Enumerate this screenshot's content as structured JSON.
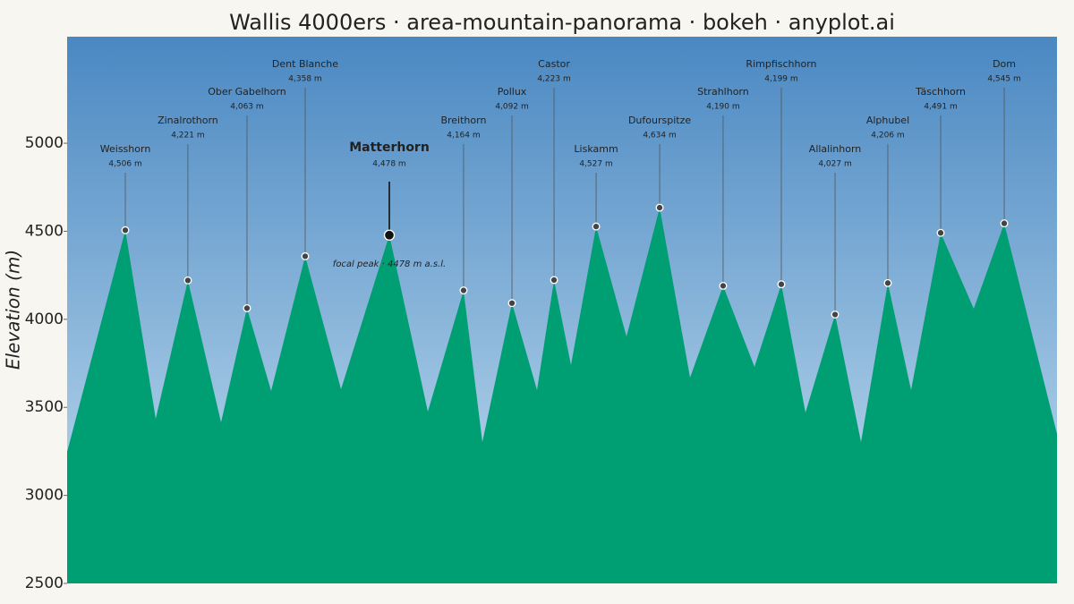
{
  "chart_data": {
    "type": "area",
    "title": "Wallis 4000ers · area-mountain-panorama · bokeh · anyplot.ai",
    "ylabel": "Elevation (m)",
    "xlim": [
      0,
      1000
    ],
    "ylim": [
      2500,
      5605
    ],
    "yticks": [
      2500,
      3000,
      3500,
      4000,
      4500,
      5000
    ],
    "sky_colors": [
      "#4a88c2",
      "#c6e0f1"
    ],
    "color": "#009e73",
    "profile": {
      "x": [
        0,
        58.8,
        89.5,
        122,
        155.5,
        181.7,
        206.1,
        240.5,
        276.7,
        325.5,
        364.4,
        400.5,
        419.5,
        449.4,
        474.7,
        491.9,
        509,
        534.4,
        565.1,
        598.6,
        629.3,
        662.7,
        694.4,
        721.5,
        745.9,
        775.8,
        802,
        829.1,
        852.6,
        882.5,
        915.9,
        946.7,
        1000
      ],
      "values": [
        3247,
        4506,
        3435,
        4221,
        3415,
        4063,
        3593,
        4358,
        3603,
        4478,
        3476,
        4164,
        3303,
        4092,
        3598,
        4223,
        3740,
        4527,
        3902,
        4634,
        3669,
        4190,
        3730,
        4199,
        3470,
        4027,
        3303,
        4206,
        3598,
        4491,
        4060,
        4545,
        3349
      ]
    },
    "peaks": {
      "names": [
        "Weisshorn",
        "Zinalrothorn",
        "Ober Gabelhorn",
        "Dent Blanche",
        "Matterhorn",
        "Breithorn",
        "Pollux",
        "Castor",
        "Liskamm",
        "Dufourspitze",
        "Strahlhorn",
        "Rimpfischhorn",
        "Allalinhorn",
        "Alphubel",
        "Täschhorn",
        "Dom"
      ],
      "x": [
        58.8,
        122,
        181.7,
        240.5,
        325.5,
        400.5,
        449.4,
        491.9,
        534.4,
        598.6,
        662.7,
        721.5,
        775.8,
        829.1,
        882.5,
        946.7
      ],
      "values": [
        4506,
        4221,
        4063,
        4358,
        4478,
        4164,
        4092,
        4223,
        4527,
        4634,
        4190,
        4199,
        4027,
        4206,
        4491,
        4545
      ],
      "value_labels": [
        "4,506 m",
        "4,221 m",
        "4,063 m",
        "4,358 m",
        "4,478 m",
        "4,164 m",
        "4,092 m",
        "4,223 m",
        "4,527 m",
        "4,634 m",
        "4,190 m",
        "4,199 m",
        "4,027 m",
        "4,206 m",
        "4,491 m",
        "4,545 m"
      ],
      "focal_index": 4
    },
    "annotation": "focal peak · 4478 m a.s.l."
  }
}
